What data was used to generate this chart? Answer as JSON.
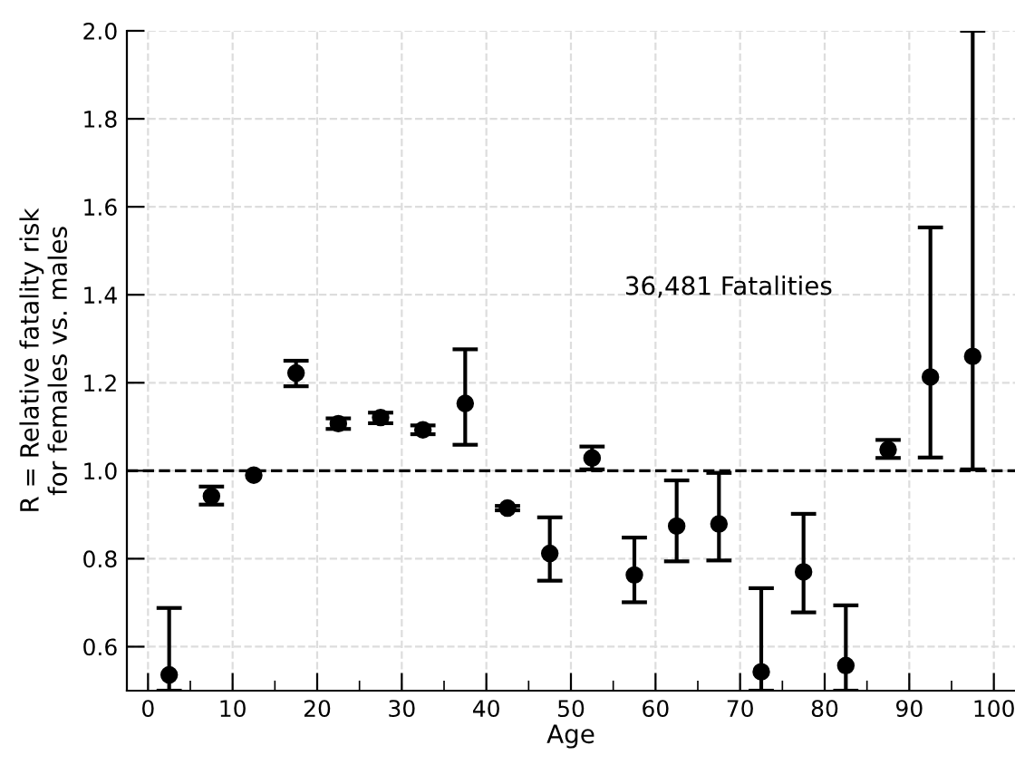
{
  "chart_data": {
    "type": "scatter",
    "xlabel": "Age",
    "ylabel": "R = Relative fatality risk\nfor females vs. males",
    "x": [
      2.5,
      7.5,
      12.5,
      17.5,
      22.5,
      27.5,
      32.5,
      37.5,
      42.5,
      47.5,
      52.5,
      57.5,
      62.5,
      67.5,
      72.5,
      77.5,
      82.5,
      87.5,
      92.5,
      97.5
    ],
    "series": [
      {
        "color": "#000000",
        "values": [
          0.536,
          0.942,
          0.99,
          1.222,
          1.107,
          1.121,
          1.093,
          1.153,
          0.915,
          0.812,
          1.029,
          0.763,
          0.874,
          0.879,
          0.543,
          0.77,
          0.557,
          1.048,
          1.213,
          1.26
        ],
        "errors": [
          [
            0.5,
            0.688
          ],
          [
            0.923,
            0.964
          ],
          null,
          [
            1.192,
            1.25
          ],
          [
            1.095,
            1.119
          ],
          [
            1.108,
            1.132
          ],
          [
            1.083,
            1.103
          ],
          [
            1.059,
            1.276
          ],
          [
            0.91,
            0.92
          ],
          [
            0.75,
            0.894
          ],
          [
            1.003,
            1.055
          ],
          [
            0.701,
            0.848
          ],
          [
            0.794,
            0.978
          ],
          [
            0.796,
            0.995
          ],
          [
            0.5,
            0.733
          ],
          [
            0.678,
            0.902
          ],
          [
            0.5,
            0.694
          ],
          [
            1.029,
            1.07
          ],
          [
            1.03,
            1.553
          ],
          [
            1.003,
            2.0
          ]
        ]
      }
    ],
    "xlim": [
      -2.5,
      102.5
    ],
    "xticks": [
      0,
      10,
      20,
      30,
      40,
      50,
      60,
      70,
      80,
      90,
      100
    ],
    "ylim": [
      0.5,
      2.0
    ],
    "yticks": [
      {
        "value": 0.6,
        "label": "0.6"
      },
      {
        "value": 0.8,
        "label": "0.8"
      },
      {
        "value": 1.0,
        "label": "1.0"
      },
      {
        "value": 1.2,
        "label": "1.2"
      },
      {
        "value": 1.4,
        "label": "1.4"
      },
      {
        "value": 1.6,
        "label": "1.6"
      },
      {
        "value": 1.8,
        "label": "1.8"
      },
      {
        "value": 2.0,
        "label": "2.0"
      }
    ],
    "ref_lines": [
      {
        "axis": "y",
        "value": 1.0,
        "color": "#000000",
        "line_style": "dashed"
      }
    ],
    "annotations": [
      "36,481 Fatalities"
    ],
    "grid": true,
    "marker": "circle"
  }
}
